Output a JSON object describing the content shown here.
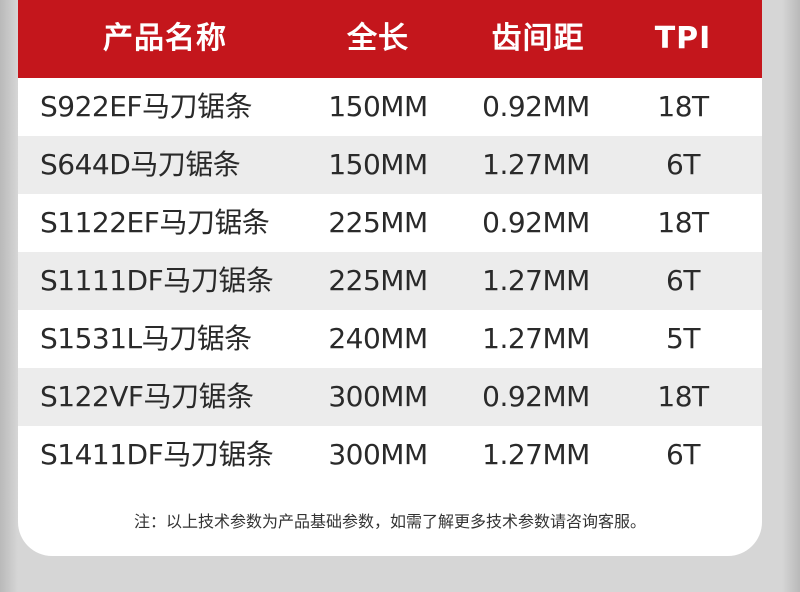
{
  "table": {
    "headers": {
      "name": "产品名称",
      "length": "全长",
      "pitch": "齿间距",
      "tpi": "TPI"
    },
    "rows": [
      {
        "name": "S922EF马刀锯条",
        "length": "150MM",
        "pitch": "0.92MM",
        "tpi": "18T"
      },
      {
        "name": "S644D马刀锯条",
        "length": "150MM",
        "pitch": "1.27MM",
        "tpi": "6T"
      },
      {
        "name": "S1122EF马刀锯条",
        "length": "225MM",
        "pitch": "0.92MM",
        "tpi": "18T"
      },
      {
        "name": "S1111DF马刀锯条",
        "length": "225MM",
        "pitch": "1.27MM",
        "tpi": "6T"
      },
      {
        "name": "S1531L马刀锯条",
        "length": "240MM",
        "pitch": "1.27MM",
        "tpi": "5T"
      },
      {
        "name": "S122VF马刀锯条",
        "length": "300MM",
        "pitch": "0.92MM",
        "tpi": "18T"
      },
      {
        "name": "S1411DF马刀锯条",
        "length": "300MM",
        "pitch": "1.27MM",
        "tpi": "6T"
      }
    ]
  },
  "note": "注：以上技术参数为产品基础参数，如需了解更多技术参数请咨询客服。",
  "colors": {
    "header_bg": "#c4161c",
    "header_text": "#ffffff",
    "row_alt_bg": "#ececec",
    "row_text": "#2a2a2a",
    "page_bg": "#d6d6d6"
  }
}
